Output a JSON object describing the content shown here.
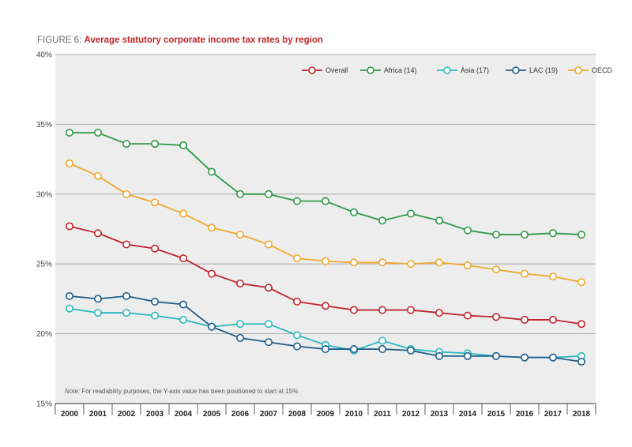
{
  "figure": {
    "label": "FIGURE 6:",
    "title": "Average statutory corporate income tax rates by region",
    "note_label": "Note:",
    "note_text": "For readability purposes, the Y-axis value has been positioned to start at 15%"
  },
  "chart_data": {
    "type": "line",
    "title": "Average statutory corporate income tax rates by region",
    "xlabel": "",
    "ylabel": "",
    "ylim": [
      15,
      40
    ],
    "yticks": [
      "15%",
      "20%",
      "25%",
      "30%",
      "35%",
      "40%"
    ],
    "categories": [
      "2000",
      "2001",
      "2002",
      "2003",
      "2004",
      "2005",
      "2006",
      "2007",
      "2008",
      "2009",
      "2010",
      "2011",
      "2012",
      "2013",
      "2014",
      "2015",
      "2016",
      "2017",
      "2018"
    ],
    "grid": "horizontal",
    "legend_position": "top-right",
    "series": [
      {
        "name": "Overall",
        "color": "#c0262d",
        "values": [
          27.7,
          27.2,
          26.4,
          26.1,
          25.4,
          24.3,
          23.6,
          23.3,
          22.3,
          22.0,
          21.7,
          21.7,
          21.7,
          21.5,
          21.3,
          21.2,
          21.0,
          21.0,
          20.7
        ]
      },
      {
        "name": "Africa (14)",
        "color": "#2e9a47",
        "values": [
          34.4,
          34.4,
          33.6,
          33.6,
          33.5,
          31.6,
          30.0,
          30.0,
          29.5,
          29.5,
          28.7,
          28.1,
          28.6,
          28.1,
          27.4,
          27.1,
          27.1,
          27.2,
          27.1
        ]
      },
      {
        "name": "Asia (17)",
        "color": "#2ab8c0",
        "values": [
          21.8,
          21.5,
          21.5,
          21.3,
          21.0,
          20.5,
          20.7,
          20.7,
          19.9,
          19.2,
          18.8,
          19.5,
          18.9,
          18.7,
          18.6,
          18.4,
          18.3,
          18.3,
          18.4
        ]
      },
      {
        "name": "LAC (19)",
        "color": "#1d5e8a",
        "values": [
          22.7,
          22.5,
          22.7,
          22.3,
          22.1,
          20.5,
          19.7,
          19.4,
          19.1,
          18.9,
          18.9,
          18.9,
          18.8,
          18.4,
          18.4,
          18.4,
          18.3,
          18.3,
          18.0
        ]
      },
      {
        "name": "OECD",
        "color": "#f0a830",
        "values": [
          32.2,
          31.3,
          30.0,
          29.4,
          28.6,
          27.6,
          27.1,
          26.4,
          25.4,
          25.2,
          25.1,
          25.1,
          25.0,
          25.1,
          24.9,
          24.6,
          24.3,
          24.1,
          23.7
        ]
      }
    ]
  }
}
